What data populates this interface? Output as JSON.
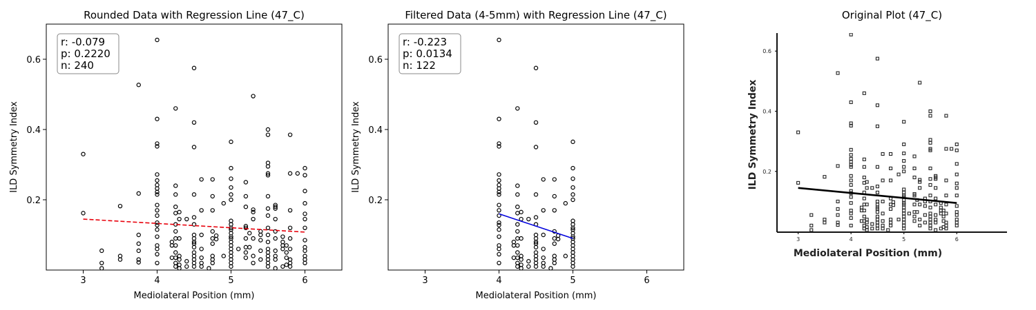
{
  "chart_data": [
    {
      "type": "scatter",
      "title": "Rounded Data with Regression Line (47_C)",
      "xlabel": "Mediolateral Position (mm)",
      "ylabel": "ILD Symmetry Index",
      "xlim": [
        2.5,
        6.5
      ],
      "ylim": [
        0.0,
        0.7
      ],
      "xticks": [
        3,
        4,
        5,
        6
      ],
      "yticks": [
        0.2,
        0.4,
        0.6
      ],
      "grid": false,
      "stats": [
        "r: -0.079",
        "p: 0.2220",
        "n: 240"
      ],
      "regression": {
        "x": [
          3,
          6
        ],
        "y": [
          0.145,
          0.108
        ],
        "color": "#e8000b",
        "style": "dashed"
      },
      "points": [
        [
          3,
          0.33
        ],
        [
          3,
          0.162
        ],
        [
          3.25,
          0.055
        ],
        [
          3.25,
          0.02
        ],
        [
          3.25,
          0.005
        ],
        [
          3.5,
          0.182
        ],
        [
          3.5,
          0.04
        ],
        [
          3.5,
          0.03
        ],
        [
          3.75,
          0.527
        ],
        [
          3.75,
          0.218
        ],
        [
          3.75,
          0.1
        ],
        [
          3.75,
          0.075
        ],
        [
          3.75,
          0.055
        ],
        [
          3.75,
          0.03
        ],
        [
          3.75,
          0.022
        ],
        [
          4,
          0.655
        ],
        [
          4,
          0.43
        ],
        [
          4,
          0.36
        ],
        [
          4,
          0.352
        ],
        [
          4,
          0.272
        ],
        [
          4,
          0.255
        ],
        [
          4,
          0.242
        ],
        [
          4,
          0.232
        ],
        [
          4,
          0.222
        ],
        [
          4,
          0.215
        ],
        [
          4,
          0.185
        ],
        [
          4,
          0.17
        ],
        [
          4,
          0.155
        ],
        [
          4,
          0.135
        ],
        [
          4,
          0.128
        ],
        [
          4,
          0.115
        ],
        [
          4,
          0.095
        ],
        [
          4,
          0.07
        ],
        [
          4,
          0.06
        ],
        [
          4,
          0.045
        ],
        [
          4,
          0.02
        ],
        [
          4.2,
          0.08
        ],
        [
          4.2,
          0.07
        ],
        [
          4.2,
          0.035
        ],
        [
          4.25,
          0.46
        ],
        [
          4.25,
          0.24
        ],
        [
          4.25,
          0.215
        ],
        [
          4.25,
          0.18
        ],
        [
          4.25,
          0.162
        ],
        [
          4.25,
          0.13
        ],
        [
          4.25,
          0.11
        ],
        [
          4.25,
          0.09
        ],
        [
          4.25,
          0.07
        ],
        [
          4.25,
          0.05
        ],
        [
          4.25,
          0.035
        ],
        [
          4.25,
          0.02
        ],
        [
          4.25,
          0.01
        ],
        [
          4.3,
          0.165
        ],
        [
          4.3,
          0.145
        ],
        [
          4.3,
          0.09
        ],
        [
          4.3,
          0.04
        ],
        [
          4.3,
          0.03
        ],
        [
          4.3,
          0.015
        ],
        [
          4.3,
          0.005
        ],
        [
          4.4,
          0.145
        ],
        [
          4.4,
          0.025
        ],
        [
          4.4,
          0.01
        ],
        [
          4.5,
          0.575
        ],
        [
          4.5,
          0.42
        ],
        [
          4.5,
          0.35
        ],
        [
          4.5,
          0.215
        ],
        [
          4.5,
          0.15
        ],
        [
          4.5,
          0.13
        ],
        [
          4.5,
          0.1
        ],
        [
          4.5,
          0.09
        ],
        [
          4.5,
          0.08
        ],
        [
          4.5,
          0.075
        ],
        [
          4.5,
          0.065
        ],
        [
          4.5,
          0.05
        ],
        [
          4.5,
          0.04
        ],
        [
          4.5,
          0.03
        ],
        [
          4.5,
          0.02
        ],
        [
          4.5,
          0.01
        ],
        [
          4.6,
          0.258
        ],
        [
          4.6,
          0.17
        ],
        [
          4.6,
          0.1
        ],
        [
          4.6,
          0.06
        ],
        [
          4.6,
          0.035
        ],
        [
          4.6,
          0.02
        ],
        [
          4.6,
          0.01
        ],
        [
          4.7,
          0.005
        ],
        [
          4.75,
          0.258
        ],
        [
          4.75,
          0.21
        ],
        [
          4.75,
          0.17
        ],
        [
          4.75,
          0.11
        ],
        [
          4.75,
          0.09
        ],
        [
          4.75,
          0.075
        ],
        [
          4.75,
          0.04
        ],
        [
          4.75,
          0.03
        ],
        [
          4.75,
          0.02
        ],
        [
          4.8,
          0.098
        ],
        [
          4.8,
          0.088
        ],
        [
          4.9,
          0.19
        ],
        [
          4.9,
          0.04
        ],
        [
          5,
          0.365
        ],
        [
          5,
          0.29
        ],
        [
          5,
          0.26
        ],
        [
          5,
          0.235
        ],
        [
          5,
          0.215
        ],
        [
          5,
          0.2
        ],
        [
          5,
          0.14
        ],
        [
          5,
          0.13
        ],
        [
          5,
          0.12
        ],
        [
          5,
          0.115
        ],
        [
          5,
          0.105
        ],
        [
          5,
          0.095
        ],
        [
          5,
          0.09
        ],
        [
          5,
          0.08
        ],
        [
          5,
          0.07
        ],
        [
          5,
          0.06
        ],
        [
          5,
          0.05
        ],
        [
          5,
          0.04
        ],
        [
          5,
          0.03
        ],
        [
          5,
          0.02
        ],
        [
          5,
          0.01
        ],
        [
          5.1,
          0.06
        ],
        [
          5.2,
          0.25
        ],
        [
          5.2,
          0.21
        ],
        [
          5.2,
          0.18
        ],
        [
          5.2,
          0.125
        ],
        [
          5.2,
          0.12
        ],
        [
          5.2,
          0.09
        ],
        [
          5.2,
          0.065
        ],
        [
          5.2,
          0.05
        ],
        [
          5.2,
          0.035
        ],
        [
          5.25,
          0.105
        ],
        [
          5.25,
          0.065
        ],
        [
          5.3,
          0.495
        ],
        [
          5.3,
          0.172
        ],
        [
          5.3,
          0.165
        ],
        [
          5.3,
          0.145
        ],
        [
          5.3,
          0.09
        ],
        [
          5.3,
          0.04
        ],
        [
          5.3,
          0.02
        ],
        [
          5.4,
          0.11
        ],
        [
          5.4,
          0.1
        ],
        [
          5.4,
          0.085
        ],
        [
          5.4,
          0.055
        ],
        [
          5.4,
          0.03
        ],
        [
          5.5,
          0.4
        ],
        [
          5.5,
          0.385
        ],
        [
          5.5,
          0.305
        ],
        [
          5.5,
          0.295
        ],
        [
          5.5,
          0.275
        ],
        [
          5.5,
          0.27
        ],
        [
          5.5,
          0.21
        ],
        [
          5.5,
          0.175
        ],
        [
          5.5,
          0.155
        ],
        [
          5.5,
          0.12
        ],
        [
          5.5,
          0.1
        ],
        [
          5.5,
          0.08
        ],
        [
          5.5,
          0.06
        ],
        [
          5.5,
          0.05
        ],
        [
          5.5,
          0.04
        ],
        [
          5.5,
          0.03
        ],
        [
          5.5,
          0.02
        ],
        [
          5.5,
          0.01
        ],
        [
          5.6,
          0.185
        ],
        [
          5.6,
          0.18
        ],
        [
          5.6,
          0.175
        ],
        [
          5.6,
          0.145
        ],
        [
          5.6,
          0.11
        ],
        [
          5.6,
          0.09
        ],
        [
          5.6,
          0.055
        ],
        [
          5.6,
          0.04
        ],
        [
          5.6,
          0.03
        ],
        [
          5.6,
          0.005
        ],
        [
          5.7,
          0.095
        ],
        [
          5.7,
          0.08
        ],
        [
          5.7,
          0.07
        ],
        [
          5.7,
          0.06
        ],
        [
          5.7,
          0.01
        ],
        [
          5.75,
          0.07
        ],
        [
          5.75,
          0.05
        ],
        [
          5.75,
          0.035
        ],
        [
          5.75,
          0.015
        ],
        [
          5.8,
          0.385
        ],
        [
          5.8,
          0.275
        ],
        [
          5.8,
          0.17
        ],
        [
          5.8,
          0.12
        ],
        [
          5.8,
          0.09
        ],
        [
          5.8,
          0.06
        ],
        [
          5.8,
          0.03
        ],
        [
          5.8,
          0.02
        ],
        [
          5.8,
          0.01
        ],
        [
          5.9,
          0.275
        ],
        [
          6,
          0.29
        ],
        [
          6,
          0.27
        ],
        [
          6,
          0.225
        ],
        [
          6,
          0.19
        ],
        [
          6,
          0.16
        ],
        [
          6,
          0.145
        ],
        [
          6,
          0.12
        ],
        [
          6,
          0.085
        ],
        [
          6,
          0.065
        ],
        [
          6,
          0.055
        ],
        [
          6,
          0.04
        ],
        [
          6,
          0.03
        ],
        [
          6,
          0.02
        ]
      ]
    },
    {
      "type": "scatter",
      "title": "Filtered Data (4-5mm) with Regression Line (47_C)",
      "xlabel": "Mediolateral Position (mm)",
      "ylabel": "ILD Symmetry Index",
      "xlim": [
        2.5,
        6.5
      ],
      "ylim": [
        0.0,
        0.7
      ],
      "xticks": [
        3,
        4,
        5,
        6
      ],
      "yticks": [
        0.2,
        0.4,
        0.6
      ],
      "grid": false,
      "stats": [
        "r: -0.223",
        "p: 0.0134",
        "n: 122"
      ],
      "regression": {
        "x": [
          4,
          5
        ],
        "y": [
          0.16,
          0.09
        ],
        "color": "#0000dd",
        "style": "solid"
      },
      "points": [
        [
          4,
          0.655
        ],
        [
          4,
          0.43
        ],
        [
          4,
          0.36
        ],
        [
          4,
          0.352
        ],
        [
          4,
          0.272
        ],
        [
          4,
          0.255
        ],
        [
          4,
          0.242
        ],
        [
          4,
          0.232
        ],
        [
          4,
          0.222
        ],
        [
          4,
          0.215
        ],
        [
          4,
          0.185
        ],
        [
          4,
          0.17
        ],
        [
          4,
          0.155
        ],
        [
          4,
          0.135
        ],
        [
          4,
          0.128
        ],
        [
          4,
          0.115
        ],
        [
          4,
          0.095
        ],
        [
          4,
          0.07
        ],
        [
          4,
          0.06
        ],
        [
          4,
          0.045
        ],
        [
          4,
          0.02
        ],
        [
          4.2,
          0.08
        ],
        [
          4.2,
          0.07
        ],
        [
          4.2,
          0.035
        ],
        [
          4.25,
          0.46
        ],
        [
          4.25,
          0.24
        ],
        [
          4.25,
          0.215
        ],
        [
          4.25,
          0.18
        ],
        [
          4.25,
          0.162
        ],
        [
          4.25,
          0.13
        ],
        [
          4.25,
          0.11
        ],
        [
          4.25,
          0.09
        ],
        [
          4.25,
          0.07
        ],
        [
          4.25,
          0.05
        ],
        [
          4.25,
          0.035
        ],
        [
          4.25,
          0.02
        ],
        [
          4.25,
          0.01
        ],
        [
          4.3,
          0.165
        ],
        [
          4.3,
          0.145
        ],
        [
          4.3,
          0.09
        ],
        [
          4.3,
          0.04
        ],
        [
          4.3,
          0.03
        ],
        [
          4.3,
          0.015
        ],
        [
          4.3,
          0.005
        ],
        [
          4.4,
          0.145
        ],
        [
          4.4,
          0.025
        ],
        [
          4.4,
          0.01
        ],
        [
          4.5,
          0.575
        ],
        [
          4.5,
          0.42
        ],
        [
          4.5,
          0.35
        ],
        [
          4.5,
          0.215
        ],
        [
          4.5,
          0.15
        ],
        [
          4.5,
          0.13
        ],
        [
          4.5,
          0.1
        ],
        [
          4.5,
          0.09
        ],
        [
          4.5,
          0.08
        ],
        [
          4.5,
          0.075
        ],
        [
          4.5,
          0.065
        ],
        [
          4.5,
          0.05
        ],
        [
          4.5,
          0.04
        ],
        [
          4.5,
          0.03
        ],
        [
          4.5,
          0.02
        ],
        [
          4.5,
          0.01
        ],
        [
          4.6,
          0.258
        ],
        [
          4.6,
          0.17
        ],
        [
          4.6,
          0.1
        ],
        [
          4.6,
          0.06
        ],
        [
          4.6,
          0.035
        ],
        [
          4.6,
          0.02
        ],
        [
          4.6,
          0.01
        ],
        [
          4.7,
          0.005
        ],
        [
          4.75,
          0.258
        ],
        [
          4.75,
          0.21
        ],
        [
          4.75,
          0.17
        ],
        [
          4.75,
          0.11
        ],
        [
          4.75,
          0.09
        ],
        [
          4.75,
          0.075
        ],
        [
          4.75,
          0.04
        ],
        [
          4.75,
          0.03
        ],
        [
          4.75,
          0.02
        ],
        [
          4.8,
          0.098
        ],
        [
          4.8,
          0.088
        ],
        [
          4.9,
          0.19
        ],
        [
          4.9,
          0.04
        ],
        [
          5,
          0.365
        ],
        [
          5,
          0.29
        ],
        [
          5,
          0.26
        ],
        [
          5,
          0.235
        ],
        [
          5,
          0.215
        ],
        [
          5,
          0.2
        ],
        [
          5,
          0.14
        ],
        [
          5,
          0.13
        ],
        [
          5,
          0.12
        ],
        [
          5,
          0.115
        ],
        [
          5,
          0.105
        ],
        [
          5,
          0.095
        ],
        [
          5,
          0.09
        ],
        [
          5,
          0.08
        ],
        [
          5,
          0.07
        ],
        [
          5,
          0.06
        ],
        [
          5,
          0.05
        ],
        [
          5,
          0.04
        ],
        [
          5,
          0.03
        ],
        [
          5,
          0.02
        ],
        [
          5,
          0.01
        ]
      ]
    },
    {
      "type": "scatter",
      "title": "Original Plot (47_C)",
      "xlabel": "Mediolateral Position (mm)",
      "ylabel": "ILD Symmetry Index",
      "xlim": [
        2.6,
        6.95
      ],
      "ylim": [
        -0.002,
        0.66
      ],
      "xticks": [
        3,
        4,
        5,
        6
      ],
      "yticks": [
        0.2,
        0.4,
        0.6
      ],
      "grid": false,
      "regression": {
        "x": [
          3,
          6
        ],
        "y": [
          0.145,
          0.095
        ],
        "color": "#000000",
        "style": "solid"
      },
      "points_source": "points of chart 1"
    }
  ]
}
